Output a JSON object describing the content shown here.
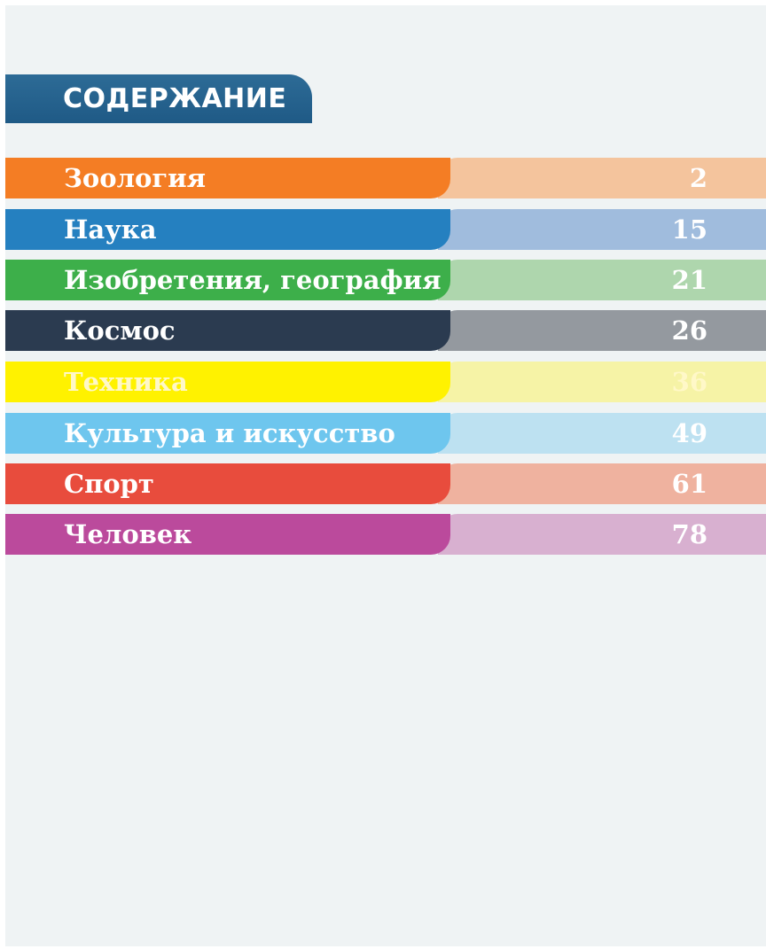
{
  "title": "СОДЕРЖАНИЕ",
  "entries": [
    {
      "label": "Зоология",
      "page": "2",
      "color": "#f47d24",
      "light_color": "#f4c49d"
    },
    {
      "label": "Наука",
      "page": "15",
      "color": "#2580c0",
      "light_color": "#a0bcdd"
    },
    {
      "label": "Изобретения, география",
      "page": "21",
      "color": "#3daf4a",
      "light_color": "#aed6ad"
    },
    {
      "label": "Космос",
      "page": "26",
      "color": "#2b3b50",
      "light_color": "#94999f"
    },
    {
      "label": "Техника",
      "page": "36",
      "color": "#fff200",
      "light_color": "#f6f3a6"
    },
    {
      "label": "Культура и искусство",
      "page": "49",
      "color": "#6ec6ee",
      "light_color": "#bde1f1"
    },
    {
      "label": "Спорт",
      "page": "61",
      "color": "#e84c3d",
      "light_color": "#efb29f"
    },
    {
      "label": "Человек",
      "page": "78",
      "color": "#bb4a9c",
      "light_color": "#d8b0d0"
    }
  ]
}
